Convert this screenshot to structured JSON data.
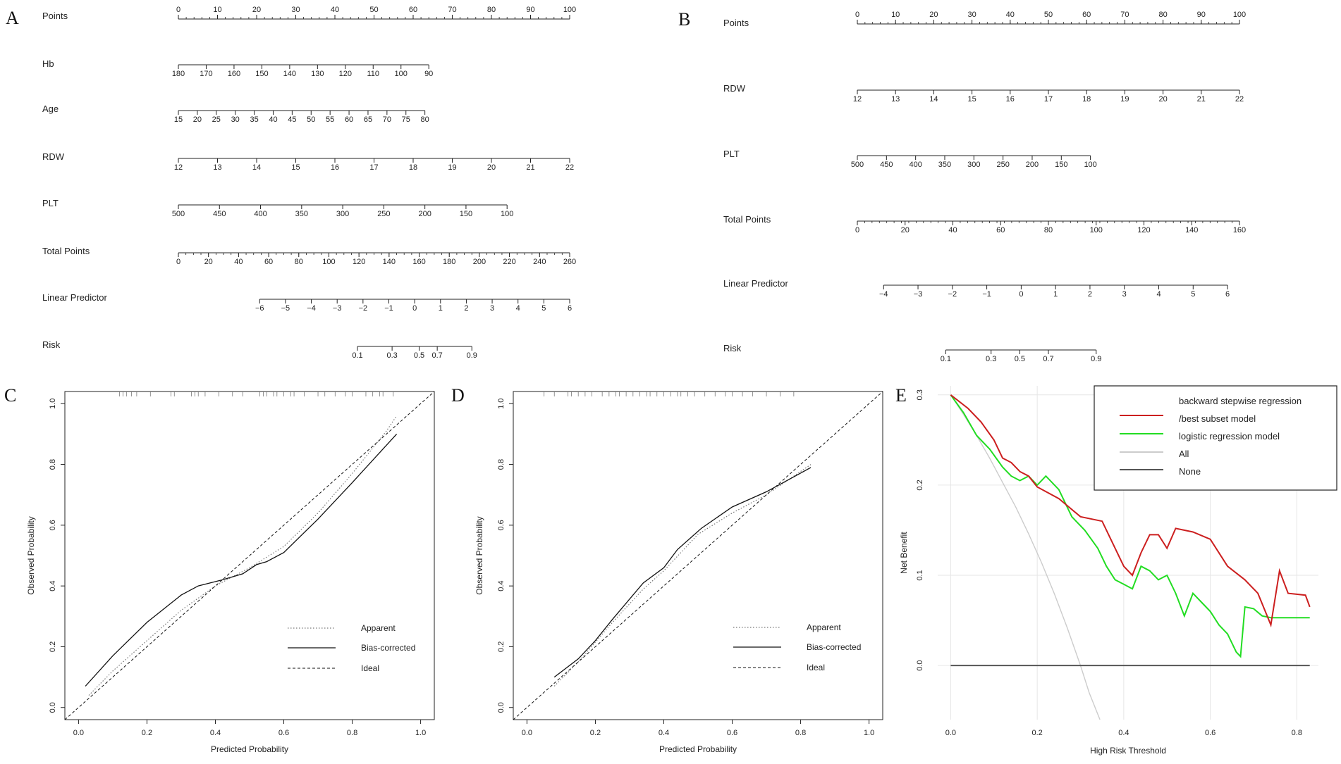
{
  "chart_data": [
    {
      "panel": "A",
      "type": "nomogram",
      "rows": [
        {
          "label": "Points",
          "ticks": [
            "0",
            "10",
            "20",
            "30",
            "40",
            "50",
            "60",
            "70",
            "80",
            "90",
            "100"
          ],
          "axis": "points"
        },
        {
          "label": "Hb",
          "ticks": [
            "180",
            "170",
            "160",
            "150",
            "140",
            "130",
            "120",
            "110",
            "100",
            "90"
          ],
          "axis_points": [
            0,
            64
          ]
        },
        {
          "label": "Age",
          "ticks": [
            "15",
            "20",
            "25",
            "30",
            "35",
            "40",
            "45",
            "50",
            "55",
            "60",
            "65",
            "70",
            "75",
            "80"
          ],
          "axis_points": [
            0,
            63
          ]
        },
        {
          "label": "RDW",
          "ticks": [
            "12",
            "13",
            "14",
            "15",
            "16",
            "17",
            "18",
            "19",
            "20",
            "21",
            "22"
          ],
          "axis_points": [
            0,
            100
          ]
        },
        {
          "label": "PLT",
          "ticks": [
            "500",
            "450",
            "400",
            "350",
            "300",
            "250",
            "200",
            "150",
            "100"
          ],
          "axis_points": [
            0,
            84
          ]
        },
        {
          "label": "Total Points",
          "ticks": [
            "0",
            "20",
            "40",
            "60",
            "80",
            "100",
            "120",
            "140",
            "160",
            "180",
            "200",
            "220",
            "240",
            "260"
          ],
          "axis": "total",
          "range": [
            0,
            260
          ]
        },
        {
          "label": "Linear Predictor",
          "ticks": [
            "−6",
            "−5",
            "−4",
            "−3",
            "−2",
            "−1",
            "0",
            "1",
            "2",
            "3",
            "4",
            "5",
            "6"
          ],
          "range_total": [
            54,
            260
          ]
        },
        {
          "label": "Risk",
          "ticks": [
            "0.1",
            "0.3",
            "0.5",
            "0.7",
            "0.9"
          ],
          "tick_total": [
            119,
            142,
            160,
            172,
            195
          ]
        }
      ]
    },
    {
      "panel": "B",
      "type": "nomogram",
      "rows": [
        {
          "label": "Points",
          "ticks": [
            "0",
            "10",
            "20",
            "30",
            "40",
            "50",
            "60",
            "70",
            "80",
            "90",
            "100"
          ],
          "axis": "points"
        },
        {
          "label": "RDW",
          "ticks": [
            "12",
            "13",
            "14",
            "15",
            "16",
            "17",
            "18",
            "19",
            "20",
            "21",
            "22"
          ],
          "axis_points": [
            0,
            100
          ]
        },
        {
          "label": "PLT",
          "ticks": [
            "500",
            "450",
            "400",
            "350",
            "300",
            "250",
            "200",
            "150",
            "100"
          ],
          "axis_points": [
            0,
            61
          ]
        },
        {
          "label": "Total Points",
          "ticks": [
            "0",
            "20",
            "40",
            "60",
            "80",
            "100",
            "120",
            "140",
            "160"
          ],
          "axis": "total",
          "range": [
            0,
            160
          ]
        },
        {
          "label": "Linear Predictor",
          "ticks": [
            "−4",
            "−3",
            "−2",
            "−1",
            "0",
            "1",
            "2",
            "3",
            "4",
            "5",
            "6"
          ],
          "range_total": [
            11,
            155
          ]
        },
        {
          "label": "Risk",
          "ticks": [
            "0.1",
            "0.3",
            "0.5",
            "0.7",
            "0.9"
          ],
          "tick_total": [
            37,
            56,
            68,
            80,
            100
          ]
        }
      ]
    },
    {
      "panel": "C",
      "type": "line",
      "xlabel": "Predicted Probability",
      "ylabel": "Observed Probability",
      "xlim": [
        -0.04,
        1.04
      ],
      "ylim": [
        -0.04,
        1.04
      ],
      "xticks": [
        "0.0",
        "0.2",
        "0.4",
        "0.6",
        "0.8",
        "1.0"
      ],
      "yticks": [
        "0.0",
        "0.2",
        "0.4",
        "0.6",
        "0.8",
        "1.0"
      ],
      "series": [
        {
          "name": "Apparent",
          "style": "dotted",
          "x": [
            0.03,
            0.1,
            0.2,
            0.3,
            0.4,
            0.5,
            0.6,
            0.7,
            0.8,
            0.9,
            0.93
          ],
          "y": [
            0.04,
            0.12,
            0.22,
            0.32,
            0.4,
            0.46,
            0.53,
            0.64,
            0.77,
            0.91,
            0.96
          ]
        },
        {
          "name": "Bias-corrected",
          "style": "solid",
          "x": [
            0.02,
            0.1,
            0.2,
            0.3,
            0.35,
            0.42,
            0.48,
            0.52,
            0.55,
            0.6,
            0.7,
            0.8,
            0.93
          ],
          "y": [
            0.07,
            0.17,
            0.28,
            0.37,
            0.4,
            0.42,
            0.44,
            0.47,
            0.48,
            0.51,
            0.62,
            0.74,
            0.9
          ]
        },
        {
          "name": "Ideal",
          "style": "dashed",
          "x": [
            -0.04,
            1.04
          ],
          "y": [
            -0.04,
            1.04
          ]
        }
      ],
      "rug": [
        0.12,
        0.13,
        0.14,
        0.155,
        0.17,
        0.21,
        0.27,
        0.28,
        0.33,
        0.34,
        0.35,
        0.37,
        0.41,
        0.45,
        0.48,
        0.53,
        0.54,
        0.55,
        0.57,
        0.58,
        0.6,
        0.62,
        0.63,
        0.66,
        0.7,
        0.72,
        0.75,
        0.78,
        0.8,
        0.84,
        0.86,
        0.88,
        0.89,
        0.92
      ]
    },
    {
      "panel": "D",
      "type": "line",
      "xlabel": "Predicted Probability",
      "ylabel": "Observed Probability",
      "xlim": [
        -0.04,
        1.04
      ],
      "ylim": [
        -0.04,
        1.04
      ],
      "xticks": [
        "0.0",
        "0.2",
        "0.4",
        "0.6",
        "0.8",
        "1.0"
      ],
      "yticks": [
        "0.0",
        "0.2",
        "0.4",
        "0.6",
        "0.8",
        "1.0"
      ],
      "series": [
        {
          "name": "Apparent",
          "style": "dotted",
          "x": [
            0.08,
            0.15,
            0.25,
            0.34,
            0.4,
            0.5,
            0.6,
            0.7,
            0.83
          ],
          "y": [
            0.07,
            0.15,
            0.28,
            0.39,
            0.45,
            0.57,
            0.64,
            0.7,
            0.8
          ]
        },
        {
          "name": "Bias-corrected",
          "style": "solid",
          "x": [
            0.08,
            0.15,
            0.2,
            0.25,
            0.34,
            0.4,
            0.44,
            0.51,
            0.6,
            0.7,
            0.83
          ],
          "y": [
            0.1,
            0.16,
            0.22,
            0.29,
            0.41,
            0.46,
            0.52,
            0.59,
            0.66,
            0.71,
            0.79
          ]
        },
        {
          "name": "Ideal",
          "style": "dashed",
          "x": [
            -0.04,
            1.04
          ],
          "y": [
            -0.04,
            1.04
          ]
        }
      ],
      "rug": [
        0.05,
        0.08,
        0.12,
        0.13,
        0.15,
        0.17,
        0.19,
        0.22,
        0.24,
        0.26,
        0.27,
        0.29,
        0.31,
        0.33,
        0.35,
        0.36,
        0.38,
        0.4,
        0.42,
        0.44,
        0.45,
        0.47,
        0.49,
        0.52,
        0.55,
        0.58,
        0.6,
        0.63,
        0.66,
        0.7,
        0.74,
        0.78
      ]
    },
    {
      "panel": "E",
      "type": "line",
      "xlabel": "High Risk Threshold",
      "ylabel": "Net Benefit",
      "xlim": [
        -0.03,
        0.85
      ],
      "ylim": [
        -0.06,
        0.31
      ],
      "xticks": [
        "0.0",
        "0.2",
        "0.4",
        "0.6",
        "0.8"
      ],
      "yticks": [
        "0.0",
        "0.1",
        "0.2",
        "0.3"
      ],
      "legend_position": "top-right",
      "series": [
        {
          "name": "backward stepwise regression /best subset model",
          "color": "#cc1f1f",
          "x": [
            0.0,
            0.04,
            0.07,
            0.1,
            0.12,
            0.14,
            0.16,
            0.18,
            0.2,
            0.25,
            0.3,
            0.35,
            0.38,
            0.4,
            0.42,
            0.44,
            0.46,
            0.48,
            0.5,
            0.52,
            0.56,
            0.6,
            0.64,
            0.68,
            0.71,
            0.74,
            0.76,
            0.78,
            0.82,
            0.83
          ],
          "y": [
            0.3,
            0.285,
            0.27,
            0.25,
            0.23,
            0.225,
            0.215,
            0.21,
            0.198,
            0.185,
            0.165,
            0.16,
            0.13,
            0.11,
            0.1,
            0.125,
            0.145,
            0.145,
            0.13,
            0.152,
            0.148,
            0.14,
            0.11,
            0.095,
            0.08,
            0.045,
            0.105,
            0.08,
            0.078,
            0.065
          ]
        },
        {
          "name": "logistic regression model",
          "color": "#22dd22",
          "x": [
            0.0,
            0.03,
            0.06,
            0.09,
            0.12,
            0.14,
            0.16,
            0.18,
            0.2,
            0.22,
            0.25,
            0.28,
            0.31,
            0.34,
            0.36,
            0.38,
            0.4,
            0.42,
            0.44,
            0.46,
            0.48,
            0.5,
            0.52,
            0.54,
            0.56,
            0.58,
            0.6,
            0.62,
            0.64,
            0.66,
            0.67,
            0.68,
            0.7,
            0.72,
            0.74,
            0.76,
            0.83
          ],
          "y": [
            0.3,
            0.28,
            0.255,
            0.24,
            0.22,
            0.21,
            0.205,
            0.21,
            0.2,
            0.21,
            0.195,
            0.165,
            0.15,
            0.13,
            0.11,
            0.095,
            0.09,
            0.085,
            0.11,
            0.105,
            0.095,
            0.1,
            0.08,
            0.055,
            0.08,
            0.07,
            0.06,
            0.045,
            0.035,
            0.015,
            0.01,
            0.065,
            0.063,
            0.055,
            0.053,
            0.053,
            0.053
          ]
        },
        {
          "name": "All",
          "color": "#cccccc",
          "x": [
            0.0,
            0.03,
            0.06,
            0.09,
            0.12,
            0.15,
            0.18,
            0.21,
            0.24,
            0.27,
            0.3,
            0.32,
            0.345
          ],
          "y": [
            0.3,
            0.278,
            0.255,
            0.23,
            0.203,
            0.176,
            0.146,
            0.114,
            0.079,
            0.041,
            0.0,
            -0.03,
            -0.06
          ]
        },
        {
          "name": "None",
          "color": "#555555",
          "x": [
            0.0,
            0.83
          ],
          "y": [
            0.0,
            0.0
          ]
        }
      ]
    }
  ],
  "panels": {
    "a": "A",
    "b": "B",
    "c": "C",
    "d": "D",
    "e": "E"
  },
  "legend_cd": {
    "apparent": "Apparent",
    "bias": "Bias-corrected",
    "ideal": "Ideal"
  },
  "legend_e": {
    "line1": "backward stepwise regression",
    "line2": "/best subset model",
    "line3": "logistic regression model",
    "line4": "All",
    "line5": "None"
  },
  "colors": {
    "red": "#cc1f1f",
    "green": "#22dd22",
    "gray": "#cccccc",
    "none": "#555555"
  }
}
